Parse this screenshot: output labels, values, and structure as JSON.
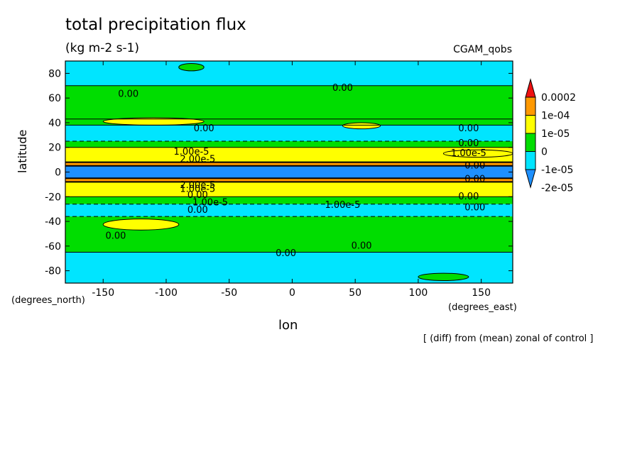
{
  "chart_data": {
    "type": "heatmap",
    "title": "total precipitation flux",
    "units": "(kg m-2 s-1)",
    "run_label": "CGAM_qobs",
    "xlabel": "lon",
    "ylabel": "latitude",
    "x_unit": "(degrees_east)",
    "y_unit": "(degrees_north)",
    "note": "[ (diff) from (mean) zonal of control ]",
    "xlim": [
      -180,
      175
    ],
    "ylim": [
      -90,
      90
    ],
    "xticks": [
      -150,
      -100,
      -50,
      0,
      50,
      100,
      150
    ],
    "yticks": [
      -80,
      -60,
      -40,
      -20,
      0,
      20,
      40,
      60,
      80
    ],
    "colorbar": {
      "labels": [
        "-2e-05",
        "-1e-05",
        "0",
        "1e-05",
        "1e-04",
        "0.0002"
      ],
      "colors": [
        "#1e90ff",
        "#00e5ff",
        "#00dd00",
        "#ffff00",
        "#ff9900",
        "#ee1111"
      ]
    },
    "bands": [
      {
        "lat": [
          70,
          90
        ],
        "class": 1
      },
      {
        "lat": [
          43,
          70
        ],
        "class": 2
      },
      {
        "lat": [
          38,
          43
        ],
        "class": 2
      },
      {
        "lat": [
          25,
          38
        ],
        "class": 1
      },
      {
        "lat": [
          20,
          25
        ],
        "class": 2
      },
      {
        "lat": [
          8,
          20
        ],
        "class": 3
      },
      {
        "lat": [
          5,
          8
        ],
        "class": 4
      },
      {
        "lat": [
          -5,
          5
        ],
        "class": 0
      },
      {
        "lat": [
          -8,
          -5
        ],
        "class": 4
      },
      {
        "lat": [
          -20,
          -8
        ],
        "class": 3
      },
      {
        "lat": [
          -26,
          -20
        ],
        "class": 2
      },
      {
        "lat": [
          -36,
          -26
        ],
        "class": 1
      },
      {
        "lat": [
          -65,
          -36
        ],
        "class": 2
      },
      {
        "lat": [
          -90,
          -65
        ],
        "class": 1
      }
    ],
    "patches": [
      {
        "lon": [
          -150,
          -90
        ],
        "lat": [
          -47,
          -38
        ],
        "class": 3
      },
      {
        "lon": [
          -150,
          -70
        ],
        "lat": [
          38,
          44
        ],
        "class": 3
      },
      {
        "lon": [
          120,
          175
        ],
        "lat": [
          12,
          18
        ],
        "class": 3
      },
      {
        "lon": [
          40,
          70
        ],
        "lat": [
          35,
          40
        ],
        "class": 3
      },
      {
        "lon": [
          100,
          140
        ],
        "lat": [
          -88,
          -82
        ],
        "class": 2
      },
      {
        "lon": [
          -90,
          -70
        ],
        "lat": [
          82,
          88
        ],
        "class": 2
      }
    ],
    "contour_labels": [
      {
        "text": "0.00",
        "lon": -130,
        "lat": 63
      },
      {
        "text": "0.00",
        "lon": 40,
        "lat": 68
      },
      {
        "text": "0.00",
        "lon": -70,
        "lat": 35
      },
      {
        "text": "0.00",
        "lon": 140,
        "lat": 35
      },
      {
        "text": "0.00",
        "lon": 140,
        "lat": 23
      },
      {
        "text": "1.00e-5",
        "lon": -80,
        "lat": 16
      },
      {
        "text": "1.00e-5",
        "lon": 140,
        "lat": 15
      },
      {
        "text": "2.00e-5",
        "lon": -75,
        "lat": 10
      },
      {
        "text": "0.00",
        "lon": 145,
        "lat": 5
      },
      {
        "text": "0.00",
        "lon": 145,
        "lat": -6
      },
      {
        "text": "2.00e-5",
        "lon": -75,
        "lat": -11
      },
      {
        "text": "1.00e-5",
        "lon": -75,
        "lat": -14
      },
      {
        "text": "0.00",
        "lon": -75,
        "lat": -19
      },
      {
        "text": "0.00",
        "lon": 140,
        "lat": -20
      },
      {
        "text": "1.00e-5",
        "lon": -65,
        "lat": -25
      },
      {
        "text": "1.00e-5",
        "lon": 40,
        "lat": -27
      },
      {
        "text": "0.00",
        "lon": -75,
        "lat": -31
      },
      {
        "text": "0.00",
        "lon": 145,
        "lat": -29
      },
      {
        "text": "0.00",
        "lon": -140,
        "lat": -52
      },
      {
        "text": "0.00",
        "lon": 55,
        "lat": -60
      },
      {
        "text": "0.00",
        "lon": -5,
        "lat": -66
      }
    ]
  }
}
